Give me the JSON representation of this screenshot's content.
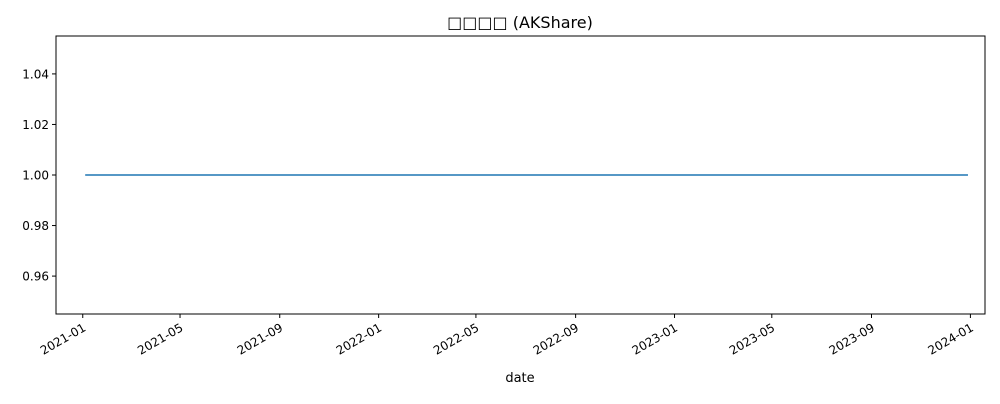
{
  "chart_data": {
    "type": "line",
    "title": "□□□□ (AKShare)",
    "xlabel": "date",
    "ylabel": "",
    "x_tick_labels": [
      "2021-01",
      "2021-05",
      "2021-09",
      "2022-01",
      "2022-05",
      "2022-09",
      "2023-01",
      "2023-05",
      "2023-09",
      "2024-01"
    ],
    "y_tick_labels": [
      "0.96",
      "0.98",
      "1.00",
      "1.02",
      "1.04"
    ],
    "y_ticks": [
      0.96,
      0.98,
      1.0,
      1.02,
      1.04
    ],
    "xlim": [
      "2020-11-29",
      "2024-01-19"
    ],
    "ylim": [
      0.945,
      1.055
    ],
    "grid": false,
    "legend": false,
    "series": [
      {
        "color": "#1f77b4",
        "x": [
          "2021-01-04",
          "2023-12-29"
        ],
        "values": [
          1.0,
          1.0
        ]
      }
    ]
  }
}
